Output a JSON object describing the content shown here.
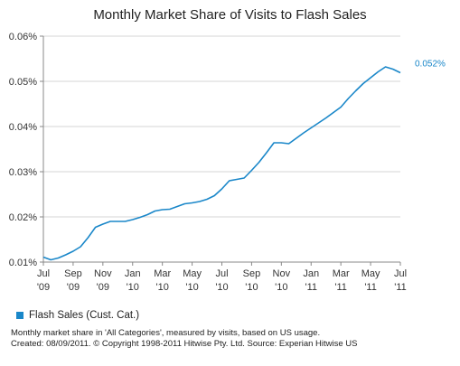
{
  "chart_data": {
    "type": "line",
    "title": "Monthly Market Share of Visits to Flash Sales",
    "xlabel": "",
    "ylabel": "",
    "y_unit": "%",
    "ylim": [
      0.01,
      0.06
    ],
    "y_ticks": [
      0.01,
      0.02,
      0.03,
      0.04,
      0.05,
      0.06
    ],
    "y_tick_labels": [
      "0.01%",
      "0.02%",
      "0.03%",
      "0.04%",
      "0.05%",
      "0.06%"
    ],
    "x_tick_labels": [
      {
        "month": "Jul",
        "year": "'09"
      },
      {
        "month": "Sep",
        "year": "'09"
      },
      {
        "month": "Nov",
        "year": "'09"
      },
      {
        "month": "Jan",
        "year": "'10"
      },
      {
        "month": "Mar",
        "year": "'10"
      },
      {
        "month": "May",
        "year": "'10"
      },
      {
        "month": "Jul",
        "year": "'10"
      },
      {
        "month": "Sep",
        "year": "'10"
      },
      {
        "month": "Nov",
        "year": "'10"
      },
      {
        "month": "Jan",
        "year": "'11"
      },
      {
        "month": "Mar",
        "year": "'11"
      },
      {
        "month": "May",
        "year": "'11"
      },
      {
        "month": "Jul",
        "year": "'11"
      }
    ],
    "x": [
      "2009-07-01",
      "2009-07-15",
      "2009-08-01",
      "2009-08-15",
      "2009-09-01",
      "2009-09-15",
      "2009-10-01",
      "2009-10-15",
      "2009-11-01",
      "2009-11-15",
      "2009-12-01",
      "2009-12-15",
      "2010-01-01",
      "2010-01-15",
      "2010-02-01",
      "2010-02-15",
      "2010-03-01",
      "2010-03-15",
      "2010-04-01",
      "2010-04-15",
      "2010-05-01",
      "2010-05-15",
      "2010-06-01",
      "2010-06-15",
      "2010-07-01",
      "2010-07-15",
      "2010-08-01",
      "2010-08-15",
      "2010-09-01",
      "2010-09-15",
      "2010-10-01",
      "2010-10-15",
      "2010-11-01",
      "2010-11-15",
      "2010-12-01",
      "2010-12-15",
      "2011-01-01",
      "2011-01-15",
      "2011-02-01",
      "2011-02-15",
      "2011-03-01",
      "2011-03-15",
      "2011-04-01",
      "2011-04-15",
      "2011-05-01",
      "2011-05-15",
      "2011-06-01",
      "2011-06-15",
      "2011-07-01"
    ],
    "series": [
      {
        "name": "Flash Sales (Cust. Cat.)",
        "color": "#1a87c9",
        "values": [
          0.0111,
          0.0105,
          0.0109,
          0.0116,
          0.0124,
          0.0134,
          0.0154,
          0.0177,
          0.0184,
          0.019,
          0.019,
          0.019,
          0.0194,
          0.0199,
          0.0205,
          0.0213,
          0.0216,
          0.0217,
          0.0223,
          0.0229,
          0.0231,
          0.0234,
          0.0239,
          0.0247,
          0.0262,
          0.028,
          0.0283,
          0.0286,
          0.0303,
          0.0321,
          0.0342,
          0.0364,
          0.0364,
          0.0362,
          0.0374,
          0.0386,
          0.0397,
          0.0408,
          0.0419,
          0.0431,
          0.0443,
          0.0462,
          0.0479,
          0.0495,
          0.0508,
          0.0521,
          0.0532,
          0.0527,
          0.0519
        ]
      }
    ],
    "end_label": "0.052%",
    "grid": true,
    "legend_position": "bottom-left"
  },
  "legend": {
    "label": "Flash Sales (Cust. Cat.)",
    "color": "#1a87c9"
  },
  "footer": {
    "line1": "Monthly market share in 'All Categories', measured by visits, based on US usage.",
    "line2": "Created: 08/09/2011. © Copyright 1998-2011 Hitwise Pty. Ltd.    Source: Experian Hitwise US"
  }
}
